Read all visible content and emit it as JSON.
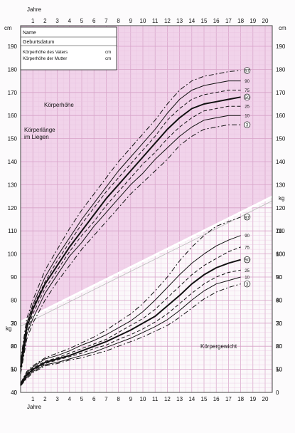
{
  "colors": {
    "height_region": "#f1d3ea",
    "grid": "#d7a2c8",
    "grid_minor": "#e9c4df",
    "curve": "#111111"
  },
  "info_box": {
    "name": "Name",
    "birthdate": "Geburtsdatum",
    "father_label": "Körperhöhe des Vaters",
    "father_unit": "cm",
    "mother_label": "Körperhöhe der Mutter",
    "mother_unit": "cm"
  },
  "chart_data": {
    "type": "line",
    "x_label_top": "Jahre",
    "x_label_bottom": "Jahre",
    "x_ticks": [
      1,
      2,
      3,
      4,
      5,
      6,
      7,
      8,
      9,
      10,
      11,
      12,
      13,
      14,
      15,
      16,
      17,
      18,
      19,
      20
    ],
    "xlim": [
      0,
      20.5
    ],
    "height_unit": "cm",
    "height_ticks": [
      40,
      50,
      60,
      70,
      80,
      90,
      100,
      110,
      120,
      130,
      140,
      150,
      160,
      170,
      180,
      190
    ],
    "height_ylim": [
      40,
      195
    ],
    "weight_unit": "kg",
    "weight_ticks": [
      0,
      10,
      20,
      30,
      40,
      50,
      60,
      70
    ],
    "weight_ylim": [
      0,
      78
    ],
    "labels": {
      "height": "Körperhöhe",
      "lying1": "Körperlänge",
      "lying2": "im Liegen",
      "weight": "Körpergewicht"
    },
    "percentiles": [
      "97",
      "90",
      "75",
      "50",
      "25",
      "10",
      "3"
    ],
    "circled": [
      "97",
      "50",
      "3"
    ],
    "height_series": [
      {
        "name": "97",
        "style": "dashdot",
        "x": [
          0,
          0.5,
          1,
          2,
          3,
          4,
          5,
          6,
          7,
          8,
          9,
          10,
          11,
          12,
          13,
          14,
          15,
          16,
          17,
          18
        ],
        "y": [
          54,
          72,
          80,
          93,
          102,
          111,
          119,
          126,
          133,
          140,
          146,
          152,
          158,
          165,
          171,
          175,
          177,
          178,
          179,
          179.5
        ]
      },
      {
        "name": "90",
        "style": "thin",
        "x": [
          0,
          0.5,
          1,
          2,
          3,
          4,
          5,
          6,
          7,
          8,
          9,
          10,
          11,
          12,
          13,
          14,
          15,
          16,
          17,
          18
        ],
        "y": [
          53,
          70,
          78,
          90,
          99,
          107,
          115,
          122,
          129,
          136,
          142,
          148,
          154,
          161,
          167,
          171,
          173,
          174,
          175,
          175
        ]
      },
      {
        "name": "75",
        "style": "dashed",
        "x": [
          0,
          0.5,
          1,
          2,
          3,
          4,
          5,
          6,
          7,
          8,
          9,
          10,
          11,
          12,
          13,
          14,
          15,
          16,
          17,
          18
        ],
        "y": [
          52,
          69,
          77,
          88,
          97,
          105,
          113,
          120,
          127,
          133,
          139,
          145,
          151,
          158,
          163,
          167,
          169,
          170,
          171,
          171
        ]
      },
      {
        "name": "50",
        "style": "bold",
        "x": [
          0,
          0.5,
          1,
          2,
          3,
          4,
          5,
          6,
          7,
          8,
          9,
          10,
          11,
          12,
          13,
          14,
          15,
          16,
          17,
          18
        ],
        "y": [
          51,
          68,
          76,
          87,
          95,
          103,
          110,
          117,
          124,
          130,
          136,
          142,
          148,
          154,
          159,
          163,
          165,
          166,
          167,
          168
        ]
      },
      {
        "name": "25",
        "style": "dashed",
        "x": [
          0,
          0.5,
          1,
          2,
          3,
          4,
          5,
          6,
          7,
          8,
          9,
          10,
          11,
          12,
          13,
          14,
          15,
          16,
          17,
          18
        ],
        "y": [
          50,
          66,
          74,
          85,
          93,
          101,
          108,
          114,
          121,
          127,
          133,
          139,
          144,
          150,
          155,
          159,
          162,
          163,
          164,
          164
        ]
      },
      {
        "name": "10",
        "style": "thin",
        "x": [
          0,
          0.5,
          1,
          2,
          3,
          4,
          5,
          6,
          7,
          8,
          9,
          10,
          11,
          12,
          13,
          14,
          15,
          16,
          17,
          18
        ],
        "y": [
          49,
          65,
          72,
          83,
          91,
          99,
          105,
          112,
          118,
          124,
          130,
          135,
          141,
          146,
          151,
          155,
          158,
          159,
          160,
          160
        ]
      },
      {
        "name": "3",
        "style": "dashdot",
        "x": [
          0,
          0.5,
          1,
          2,
          3,
          4,
          5,
          6,
          7,
          8,
          9,
          10,
          11,
          12,
          13,
          14,
          15,
          16,
          17,
          18
        ],
        "y": [
          48,
          63,
          70,
          80,
          88,
          95,
          102,
          108,
          114,
          120,
          126,
          131,
          136,
          141,
          147,
          151,
          154,
          155,
          156,
          156
        ]
      }
    ],
    "weight_series": [
      {
        "name": "97",
        "style": "dashdot",
        "x": [
          0,
          0.5,
          1,
          2,
          3,
          4,
          5,
          6,
          7,
          8,
          9,
          10,
          11,
          12,
          13,
          14,
          15,
          16,
          17,
          18
        ],
        "y": [
          4,
          9,
          11.5,
          15,
          17,
          19,
          21.5,
          24,
          27,
          30.5,
          34,
          38.5,
          44,
          50,
          57,
          63,
          68,
          72,
          74,
          76
        ]
      },
      {
        "name": "90",
        "style": "thin",
        "x": [
          0,
          0.5,
          1,
          2,
          3,
          4,
          5,
          6,
          7,
          8,
          9,
          10,
          11,
          12,
          13,
          14,
          15,
          16,
          17,
          18
        ],
        "y": [
          3.8,
          8.5,
          11,
          14.5,
          16,
          18,
          20.5,
          22.5,
          25,
          28,
          31,
          35,
          40,
          45.5,
          51,
          56,
          60,
          63.5,
          66,
          68
        ]
      },
      {
        "name": "75",
        "style": "dashed",
        "x": [
          0,
          0.5,
          1,
          2,
          3,
          4,
          5,
          6,
          7,
          8,
          9,
          10,
          11,
          12,
          13,
          14,
          15,
          16,
          17,
          18
        ],
        "y": [
          3.6,
          8,
          10.5,
          13.5,
          15,
          17,
          19,
          21,
          23,
          26,
          29,
          32,
          36,
          41,
          46,
          51,
          55,
          58,
          61,
          63
        ]
      },
      {
        "name": "50",
        "style": "bold",
        "x": [
          0,
          0.5,
          1,
          2,
          3,
          4,
          5,
          6,
          7,
          8,
          9,
          10,
          11,
          12,
          13,
          14,
          15,
          16,
          17,
          18
        ],
        "y": [
          3.4,
          7.5,
          10,
          13,
          14.5,
          16,
          18,
          20,
          22,
          24.5,
          27,
          30,
          33,
          37.5,
          42,
          47,
          51,
          54,
          56,
          57.5
        ]
      },
      {
        "name": "25",
        "style": "dashed",
        "x": [
          0,
          0.5,
          1,
          2,
          3,
          4,
          5,
          6,
          7,
          8,
          9,
          10,
          11,
          12,
          13,
          14,
          15,
          16,
          17,
          18
        ],
        "y": [
          3.2,
          7,
          9.5,
          12.5,
          14,
          15.5,
          17,
          19,
          20.5,
          23,
          25,
          27.5,
          30.5,
          34,
          38.5,
          43,
          47,
          50,
          52,
          53
        ]
      },
      {
        "name": "10",
        "style": "thin",
        "x": [
          0,
          0.5,
          1,
          2,
          3,
          4,
          5,
          6,
          7,
          8,
          9,
          10,
          11,
          12,
          13,
          14,
          15,
          16,
          17,
          18
        ],
        "y": [
          3,
          6.5,
          9,
          12,
          13,
          14.5,
          16,
          17.5,
          19.5,
          21.5,
          23.5,
          26,
          28.5,
          31.5,
          35.5,
          40,
          44,
          47,
          48.5,
          50
        ]
      },
      {
        "name": "3",
        "style": "dashdot",
        "x": [
          0,
          0.5,
          1,
          2,
          3,
          4,
          5,
          6,
          7,
          8,
          9,
          10,
          11,
          12,
          13,
          14,
          15,
          16,
          17,
          18
        ],
        "y": [
          2.8,
          6,
          8.5,
          11.5,
          12.5,
          14,
          15,
          16.5,
          18,
          20,
          22,
          24,
          26.5,
          29,
          32.5,
          36.5,
          40.5,
          43.5,
          45.5,
          47
        ]
      }
    ]
  }
}
